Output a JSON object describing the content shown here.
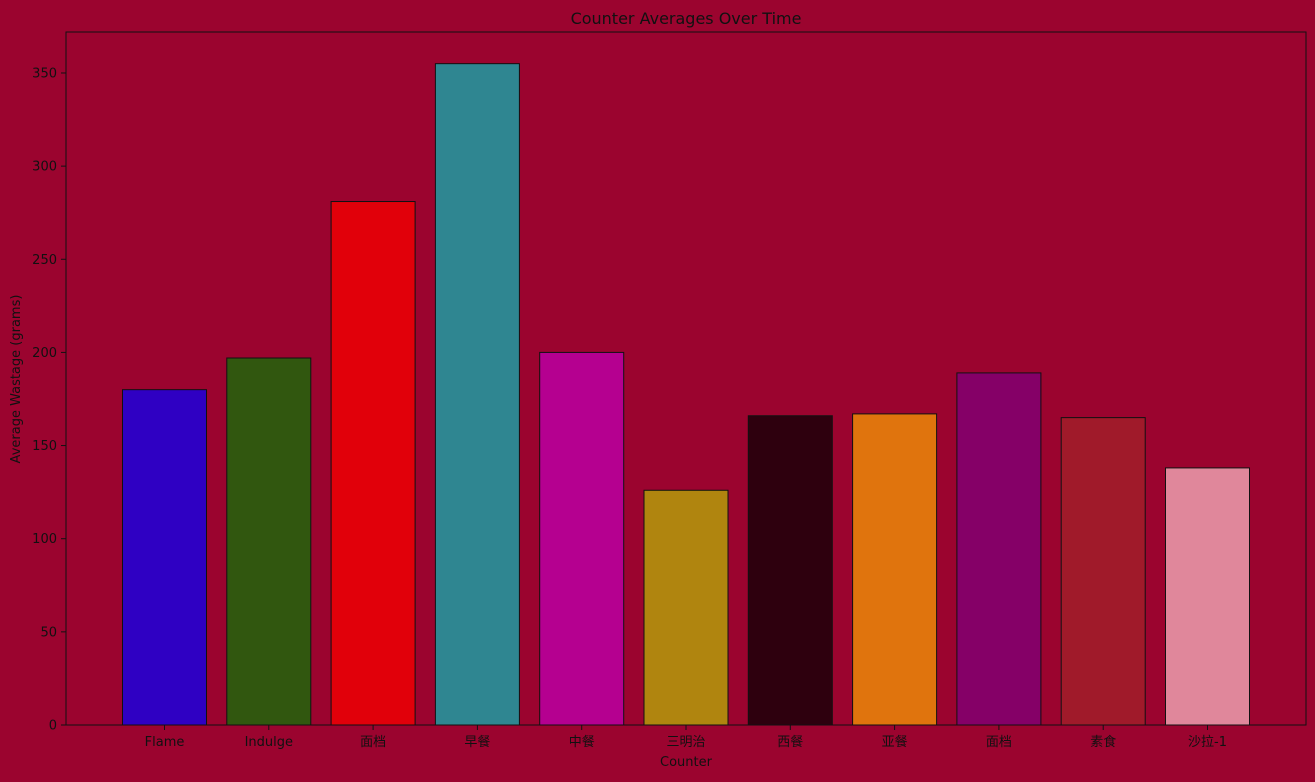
{
  "chart_data": {
    "type": "bar",
    "title": "Counter Averages Over Time",
    "xlabel": "Counter",
    "ylabel": "Average Wastage (grams)",
    "categories": [
      "Flame",
      "Indulge",
      "面档",
      "早餐",
      "中餐",
      "三明治",
      "西餐",
      "亚餐",
      "面档",
      "素食",
      "沙拉-1"
    ],
    "values": [
      180,
      197,
      281,
      355,
      200,
      126,
      166,
      167,
      189,
      165,
      138
    ],
    "colors": [
      "#2f00c3",
      "#31570f",
      "#e1000a",
      "#2f8691",
      "#b50090",
      "#b0850f",
      "#2e000e",
      "#e0740d",
      "#850067",
      "#a01a2a",
      "#e0879b"
    ],
    "ylim": [
      0,
      372
    ],
    "yticks": [
      0,
      50,
      100,
      150,
      200,
      250,
      300,
      350
    ],
    "grid": false,
    "background_color": "#9b042f"
  }
}
